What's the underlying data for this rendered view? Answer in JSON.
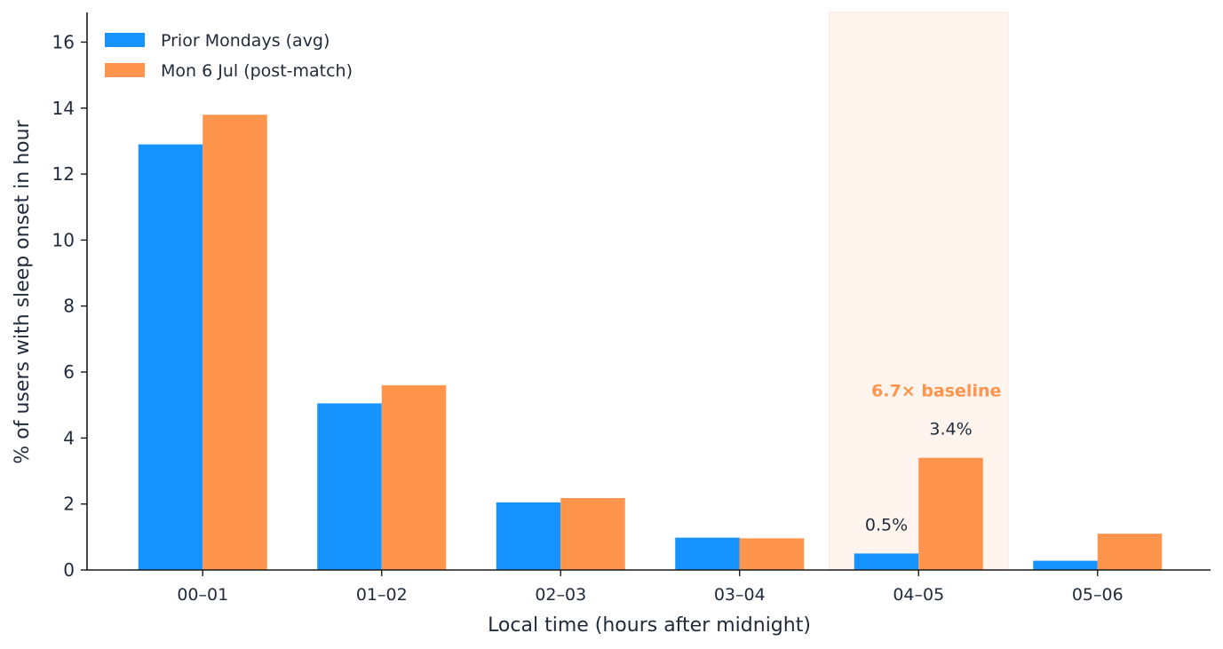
{
  "chart_data": {
    "type": "bar",
    "categories": [
      "00–01",
      "01–02",
      "02–03",
      "03–04",
      "04–05",
      "05–06"
    ],
    "series": [
      {
        "name": "Prior Mondays (avg)",
        "color": "#1793ff",
        "values": [
          12.9,
          5.05,
          2.05,
          0.98,
          0.5,
          0.28
        ]
      },
      {
        "name": "Mon 6 Jul (post-match)",
        "color": "#ff944d",
        "values": [
          13.8,
          5.6,
          2.18,
          0.96,
          3.4,
          1.1
        ]
      }
    ],
    "xlabel": "Local time (hours after midnight)",
    "ylabel": "% of users with sleep onset in hour",
    "ylim": [
      0,
      16.9
    ],
    "yticks": [
      "0",
      "2",
      "4",
      "6",
      "8",
      "10",
      "12",
      "14",
      "16"
    ],
    "legend": {
      "position": "top-left"
    },
    "highlight": {
      "category": "04–05",
      "color": "#fff5ee"
    },
    "data_labels": [
      {
        "category": "04–05",
        "series": 0,
        "text": "0.5%"
      },
      {
        "category": "04–05",
        "series": 1,
        "text": "3.4%"
      }
    ],
    "annotation": {
      "category": "04–05",
      "text": "6.7× baseline",
      "color": "#ff944d",
      "y": 5.4
    },
    "grid": false
  }
}
